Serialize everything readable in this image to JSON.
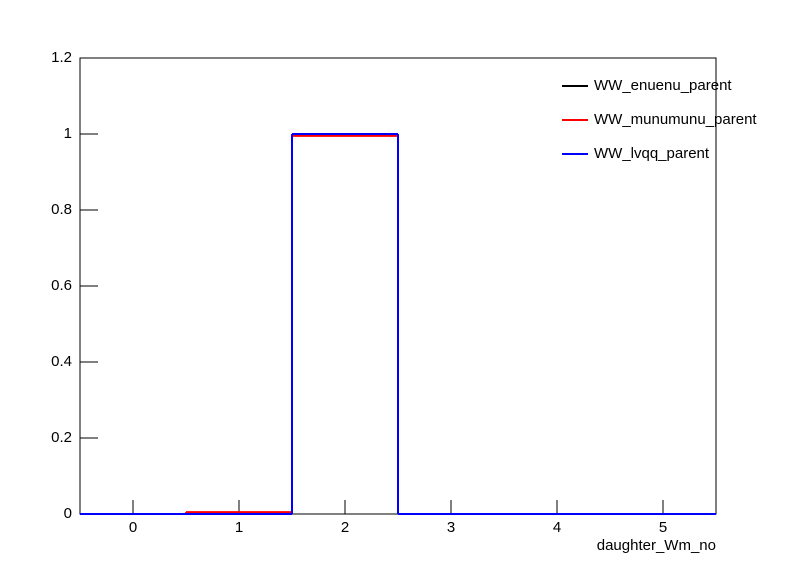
{
  "chart_data": {
    "type": "histogram",
    "x_label": "daughter_Wm_no",
    "bins": [
      -0.5,
      0.5,
      1.5,
      2.5,
      3.5,
      4.5,
      5.5
    ],
    "series": [
      {
        "name": "WW_enuenu_parent",
        "color": "#000000",
        "values": [
          0,
          0,
          1,
          0,
          0,
          0
        ]
      },
      {
        "name": "WW_munumunu_parent",
        "color": "#ff0000",
        "values": [
          0,
          0.005,
          0.995,
          0,
          0,
          0
        ]
      },
      {
        "name": "WW_lvqq_parent",
        "color": "#0000ff",
        "values": [
          0,
          0,
          1,
          0,
          0,
          0
        ]
      }
    ],
    "xlim": [
      -0.5,
      5.5
    ],
    "xticks": [
      0,
      1,
      2,
      3,
      4,
      5
    ],
    "ylim": [
      0,
      1.2
    ],
    "yticks": [
      0,
      0.2,
      0.4,
      0.6,
      0.8,
      1,
      1.2
    ],
    "legend": "top-right"
  }
}
